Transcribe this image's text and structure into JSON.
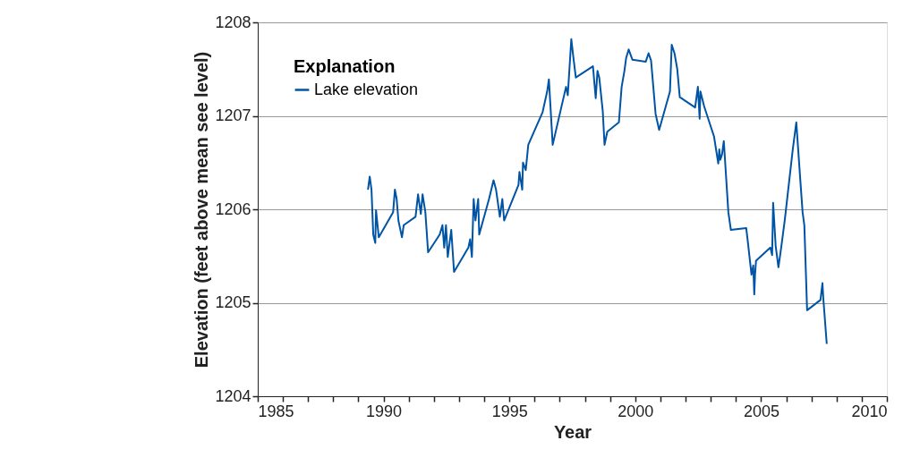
{
  "chart_data": {
    "type": "line",
    "xlabel": "Year",
    "ylabel": "Elevation (feet above mean see level)",
    "legend_title": "Explanation",
    "xlim": [
      1985,
      2010
    ],
    "ylim": [
      1204,
      1208
    ],
    "xticks": [
      1985,
      {
        "value": 1986,
        "label": null
      },
      {
        "value": 1987,
        "label": null
      },
      {
        "value": 1988,
        "label": null
      },
      {
        "value": 1989,
        "label": null
      },
      1990,
      {
        "value": 1991,
        "label": null
      },
      {
        "value": 1992,
        "label": null
      },
      {
        "value": 1993,
        "label": null
      },
      {
        "value": 1994,
        "label": null
      },
      1995,
      {
        "value": 1996,
        "label": null
      },
      {
        "value": 1997,
        "label": null
      },
      {
        "value": 1998,
        "label": null
      },
      {
        "value": 1999,
        "label": null
      },
      2000,
      {
        "value": 2001,
        "label": null
      },
      {
        "value": 2002,
        "label": null
      },
      {
        "value": 2003,
        "label": null
      },
      {
        "value": 2004,
        "label": null
      },
      2005,
      {
        "value": 2006,
        "label": null
      },
      {
        "value": 2007,
        "label": null
      },
      {
        "value": 2008,
        "label": null
      },
      {
        "value": 2009,
        "label": null
      },
      2010
    ],
    "yticks": [
      1204,
      1205,
      1206,
      1207,
      1208
    ],
    "grid": "y",
    "legend": "top left",
    "marker": "none",
    "line_style": "solid",
    "series": [
      {
        "name": "Lake elevation",
        "color": "#0054a6",
        "x": [
          1989.38,
          1989.45,
          1989.52,
          1989.59,
          1989.67,
          1989.7,
          1989.81,
          1990.38,
          1990.45,
          1990.52,
          1990.59,
          1990.73,
          1990.8,
          1991.27,
          1991.37,
          1991.48,
          1991.55,
          1991.66,
          1991.77,
          1992.23,
          1992.34,
          1992.41,
          1992.48,
          1992.55,
          1992.69,
          1992.8,
          1993.37,
          1993.44,
          1993.51,
          1993.58,
          1993.65,
          1993.76,
          1993.8,
          1994.19,
          1994.37,
          1994.47,
          1994.62,
          1994.72,
          1994.79,
          1995.36,
          1995.4,
          1995.51,
          1995.54,
          1995.65,
          1995.75,
          1996.32,
          1996.5,
          1996.57,
          1996.72,
          1997.25,
          1997.32,
          1997.46,
          1997.54,
          1997.64,
          1998.32,
          1998.43,
          1998.5,
          1998.57,
          1998.71,
          1998.78,
          1998.89,
          1999.35,
          1999.46,
          1999.57,
          1999.64,
          1999.74,
          1999.89,
          2000.42,
          2000.53,
          2000.63,
          2000.81,
          2000.95,
          2001.38,
          2001.45,
          2001.56,
          2001.67,
          2001.77,
          2002.38,
          2002.49,
          2002.56,
          2002.59,
          2002.74,
          2003.13,
          2003.3,
          2003.34,
          2003.38,
          2003.45,
          2003.52,
          2003.7,
          2003.8,
          2004.41,
          2004.48,
          2004.55,
          2004.62,
          2004.69,
          2004.73,
          2004.76,
          2004.8,
          2005.37,
          2005.44,
          2005.48,
          2005.58,
          2005.69,
          2005.8,
          2005.94,
          2006.26,
          2006.4,
          2006.55,
          2006.65,
          2006.72,
          2006.83,
          2007.36,
          2007.44,
          2007.47,
          2007.61
        ],
        "values": [
          1206.21,
          1206.35,
          1206.21,
          1205.73,
          1205.64,
          1205.99,
          1205.7,
          1205.97,
          1206.21,
          1206.11,
          1205.88,
          1205.7,
          1205.83,
          1205.92,
          1206.16,
          1205.95,
          1206.16,
          1205.97,
          1205.54,
          1205.73,
          1205.83,
          1205.59,
          1205.83,
          1205.49,
          1205.78,
          1205.33,
          1205.59,
          1205.68,
          1205.49,
          1206.11,
          1205.88,
          1206.11,
          1205.73,
          1206.11,
          1206.31,
          1206.21,
          1205.92,
          1206.11,
          1205.88,
          1206.26,
          1206.4,
          1206.21,
          1206.5,
          1206.42,
          1206.69,
          1207.04,
          1207.26,
          1207.39,
          1206.69,
          1207.31,
          1207.22,
          1207.82,
          1207.63,
          1207.41,
          1207.53,
          1207.19,
          1207.48,
          1207.41,
          1207.05,
          1206.69,
          1206.83,
          1206.93,
          1207.31,
          1207.48,
          1207.62,
          1207.71,
          1207.6,
          1207.58,
          1207.67,
          1207.59,
          1207.02,
          1206.85,
          1207.26,
          1207.76,
          1207.67,
          1207.5,
          1207.2,
          1207.09,
          1207.31,
          1206.97,
          1207.26,
          1207.1,
          1206.78,
          1206.49,
          1206.64,
          1206.53,
          1206.59,
          1206.73,
          1205.97,
          1205.78,
          1205.8,
          1205.64,
          1205.47,
          1205.3,
          1205.4,
          1205.09,
          1205.3,
          1205.45,
          1205.59,
          1205.51,
          1206.07,
          1205.61,
          1205.38,
          1205.59,
          1205.88,
          1206.64,
          1206.93,
          1206.35,
          1205.97,
          1205.83,
          1204.92,
          1205.03,
          1205.21,
          1205.06,
          1204.56
        ]
      }
    ]
  }
}
